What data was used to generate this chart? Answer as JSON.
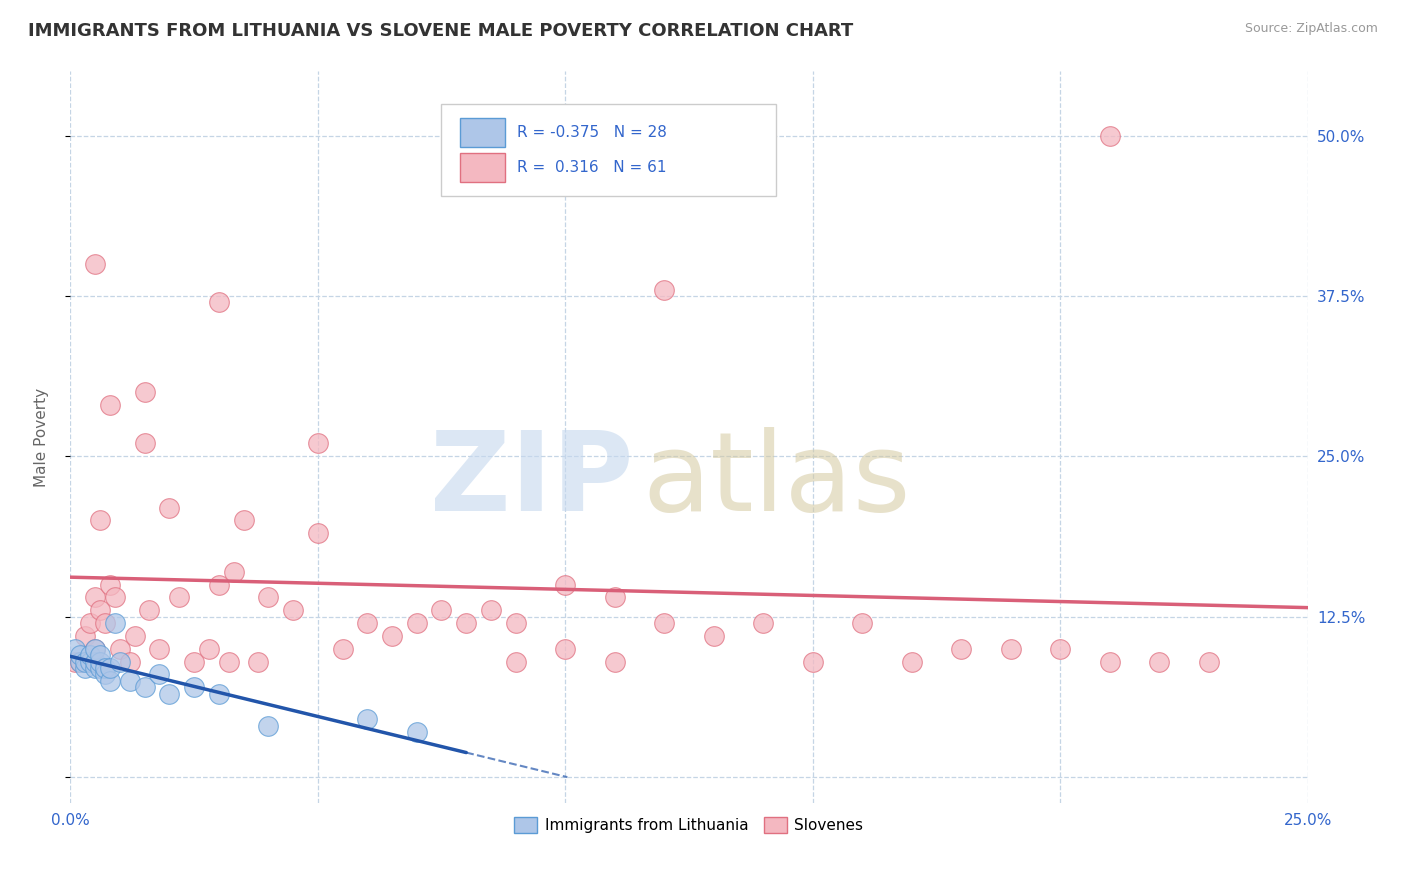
{
  "title": "IMMIGRANTS FROM LITHUANIA VS SLOVENE MALE POVERTY CORRELATION CHART",
  "source": "Source: ZipAtlas.com",
  "ylabel": "Male Poverty",
  "xlim": [
    0.0,
    0.25
  ],
  "ylim": [
    -0.02,
    0.55
  ],
  "x_ticks": [
    0.0,
    0.05,
    0.1,
    0.15,
    0.2,
    0.25
  ],
  "y_ticks": [
    0.0,
    0.125,
    0.25,
    0.375,
    0.5
  ],
  "y_tick_labels": [
    "",
    "12.5%",
    "25.0%",
    "37.5%",
    "50.0%"
  ],
  "blue_R": -0.375,
  "blue_N": 28,
  "pink_R": 0.316,
  "pink_N": 61,
  "blue_color": "#aec6e8",
  "blue_edge_color": "#5b9bd5",
  "blue_line_color": "#2255aa",
  "pink_color": "#f4b8c1",
  "pink_edge_color": "#e07080",
  "pink_line_color": "#d95f78",
  "background_color": "#ffffff",
  "grid_color": "#c5d5e5",
  "legend_label_blue": "Immigrants from Lithuania",
  "legend_label_pink": "Slovenes",
  "blue_points_x": [
    0.001,
    0.002,
    0.002,
    0.003,
    0.003,
    0.004,
    0.004,
    0.005,
    0.005,
    0.005,
    0.006,
    0.006,
    0.006,
    0.007,
    0.007,
    0.008,
    0.008,
    0.009,
    0.01,
    0.012,
    0.015,
    0.018,
    0.02,
    0.025,
    0.03,
    0.04,
    0.06,
    0.07
  ],
  "blue_points_y": [
    0.1,
    0.09,
    0.095,
    0.085,
    0.09,
    0.09,
    0.095,
    0.085,
    0.09,
    0.1,
    0.085,
    0.09,
    0.095,
    0.08,
    0.085,
    0.075,
    0.085,
    0.12,
    0.09,
    0.075,
    0.07,
    0.08,
    0.065,
    0.07,
    0.065,
    0.04,
    0.045,
    0.035
  ],
  "pink_points_x": [
    0.001,
    0.002,
    0.003,
    0.004,
    0.005,
    0.005,
    0.006,
    0.007,
    0.008,
    0.009,
    0.01,
    0.012,
    0.013,
    0.015,
    0.016,
    0.018,
    0.02,
    0.022,
    0.025,
    0.028,
    0.03,
    0.032,
    0.033,
    0.035,
    0.038,
    0.04,
    0.045,
    0.05,
    0.055,
    0.06,
    0.065,
    0.07,
    0.075,
    0.08,
    0.085,
    0.09,
    0.1,
    0.11,
    0.12,
    0.13,
    0.14,
    0.15,
    0.16,
    0.17,
    0.18,
    0.19,
    0.2,
    0.21,
    0.22,
    0.23,
    0.005,
    0.006,
    0.008,
    0.015,
    0.03,
    0.05,
    0.21,
    0.09,
    0.12,
    0.1,
    0.11
  ],
  "pink_points_y": [
    0.09,
    0.09,
    0.11,
    0.12,
    0.1,
    0.14,
    0.13,
    0.12,
    0.15,
    0.14,
    0.1,
    0.09,
    0.11,
    0.26,
    0.13,
    0.1,
    0.21,
    0.14,
    0.09,
    0.1,
    0.15,
    0.09,
    0.16,
    0.2,
    0.09,
    0.14,
    0.13,
    0.19,
    0.1,
    0.12,
    0.11,
    0.12,
    0.13,
    0.12,
    0.13,
    0.12,
    0.15,
    0.14,
    0.12,
    0.11,
    0.12,
    0.09,
    0.12,
    0.09,
    0.1,
    0.1,
    0.1,
    0.09,
    0.09,
    0.09,
    0.4,
    0.2,
    0.29,
    0.3,
    0.37,
    0.26,
    0.5,
    0.09,
    0.38,
    0.1,
    0.09
  ]
}
